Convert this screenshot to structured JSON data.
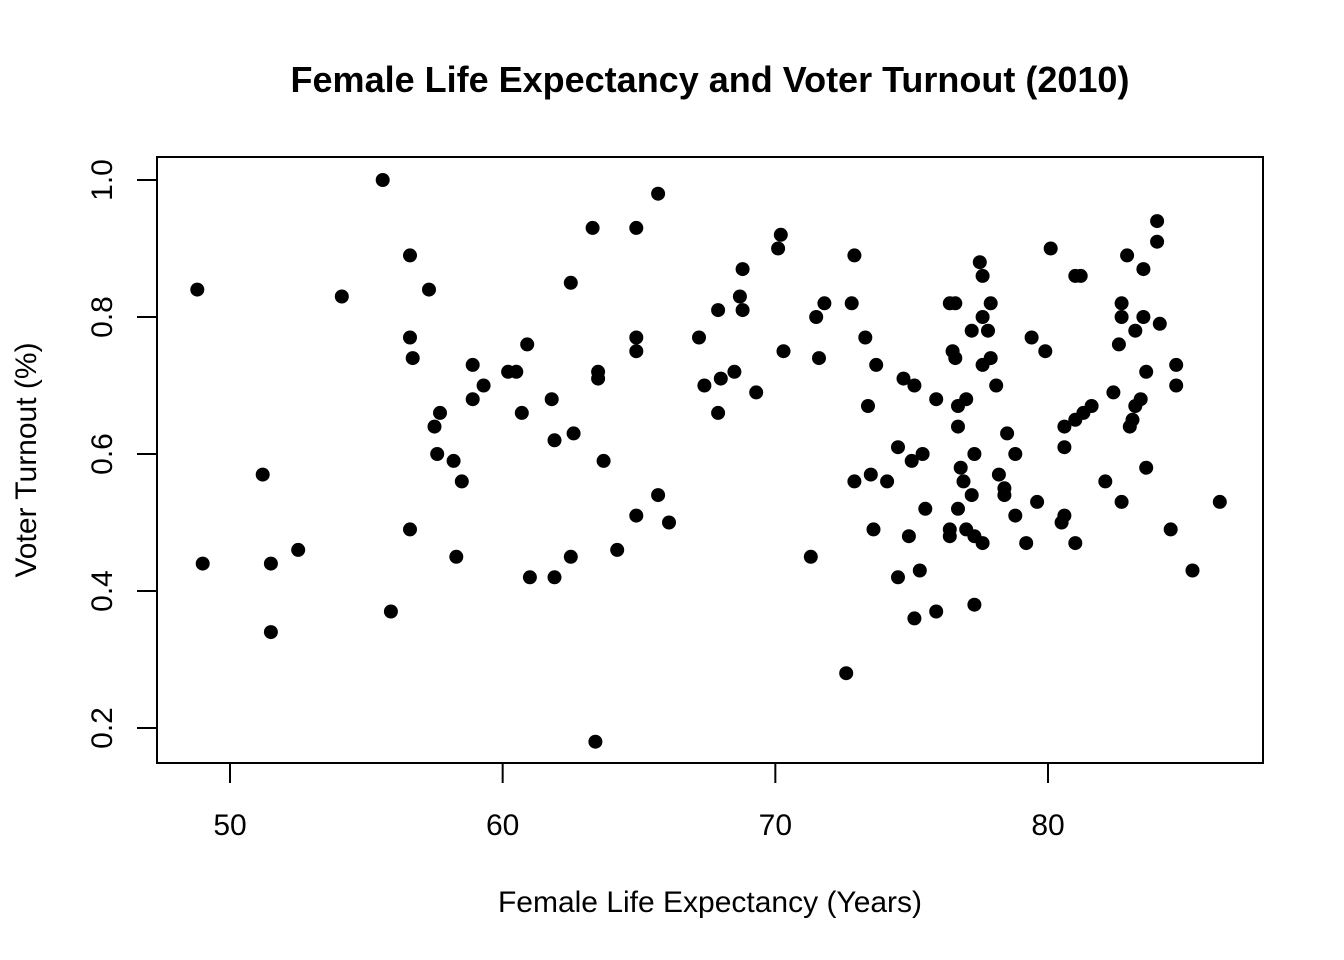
{
  "chart_data": {
    "type": "scatter",
    "title": "Female Life Expectancy and Voter Turnout (2010)",
    "xlabel": "Female Life Expectancy (Years)",
    "ylabel": "Voter Turnout (%)",
    "xlim": [
      47.4,
      86.4
    ],
    "ylim": [
      0.15,
      1.0
    ],
    "xticks": [
      50,
      60,
      70,
      80
    ],
    "xtick_labels": [
      "50",
      "60",
      "70",
      "80"
    ],
    "yticks": [
      0.2,
      0.4,
      0.6,
      0.8,
      1.0
    ],
    "ytick_labels": [
      "0.2",
      "0.4",
      "0.6",
      "0.8",
      "1.0"
    ],
    "grid": false,
    "marker_color": "#000000",
    "points": [
      [
        48.8,
        0.84
      ],
      [
        49.0,
        0.44
      ],
      [
        51.2,
        0.57
      ],
      [
        51.5,
        0.44
      ],
      [
        51.5,
        0.34
      ],
      [
        52.5,
        0.46
      ],
      [
        54.1,
        0.83
      ],
      [
        55.6,
        1.0
      ],
      [
        55.9,
        0.37
      ],
      [
        56.6,
        0.89
      ],
      [
        56.6,
        0.77
      ],
      [
        56.7,
        0.74
      ],
      [
        56.6,
        0.49
      ],
      [
        57.3,
        0.84
      ],
      [
        57.5,
        0.64
      ],
      [
        57.7,
        0.66
      ],
      [
        57.6,
        0.6
      ],
      [
        58.2,
        0.59
      ],
      [
        58.3,
        0.45
      ],
      [
        58.5,
        0.56
      ],
      [
        58.9,
        0.73
      ],
      [
        58.9,
        0.68
      ],
      [
        59.3,
        0.7
      ],
      [
        60.2,
        0.72
      ],
      [
        60.5,
        0.72
      ],
      [
        60.7,
        0.66
      ],
      [
        60.9,
        0.76
      ],
      [
        61.0,
        0.42
      ],
      [
        61.8,
        0.68
      ],
      [
        61.9,
        0.62
      ],
      [
        61.9,
        0.42
      ],
      [
        62.5,
        0.85
      ],
      [
        62.6,
        0.63
      ],
      [
        62.5,
        0.45
      ],
      [
        63.3,
        0.93
      ],
      [
        63.4,
        0.18
      ],
      [
        63.5,
        0.72
      ],
      [
        63.5,
        0.71
      ],
      [
        63.7,
        0.59
      ],
      [
        64.2,
        0.46
      ],
      [
        64.9,
        0.93
      ],
      [
        64.9,
        0.77
      ],
      [
        64.9,
        0.75
      ],
      [
        64.9,
        0.51
      ],
      [
        65.7,
        0.98
      ],
      [
        65.7,
        0.54
      ],
      [
        66.1,
        0.5
      ],
      [
        67.2,
        0.77
      ],
      [
        67.4,
        0.7
      ],
      [
        67.9,
        0.81
      ],
      [
        68.0,
        0.71
      ],
      [
        67.9,
        0.66
      ],
      [
        68.5,
        0.72
      ],
      [
        68.7,
        0.83
      ],
      [
        68.8,
        0.87
      ],
      [
        68.8,
        0.81
      ],
      [
        69.3,
        0.69
      ],
      [
        70.1,
        0.9
      ],
      [
        70.2,
        0.92
      ],
      [
        70.3,
        0.75
      ],
      [
        71.3,
        0.45
      ],
      [
        71.5,
        0.8
      ],
      [
        71.6,
        0.74
      ],
      [
        71.8,
        0.82
      ],
      [
        72.6,
        0.28
      ],
      [
        72.8,
        0.82
      ],
      [
        72.9,
        0.89
      ],
      [
        72.9,
        0.56
      ],
      [
        73.3,
        0.77
      ],
      [
        73.4,
        0.67
      ],
      [
        73.5,
        0.57
      ],
      [
        73.6,
        0.49
      ],
      [
        73.7,
        0.73
      ],
      [
        74.1,
        0.56
      ],
      [
        74.5,
        0.61
      ],
      [
        74.5,
        0.42
      ],
      [
        74.7,
        0.71
      ],
      [
        75.0,
        0.59
      ],
      [
        74.9,
        0.48
      ],
      [
        75.1,
        0.7
      ],
      [
        75.1,
        0.36
      ],
      [
        75.3,
        0.43
      ],
      [
        75.4,
        0.6
      ],
      [
        75.5,
        0.52
      ],
      [
        75.9,
        0.68
      ],
      [
        75.9,
        0.37
      ],
      [
        76.4,
        0.82
      ],
      [
        76.5,
        0.75
      ],
      [
        76.4,
        0.49
      ],
      [
        76.4,
        0.48
      ],
      [
        76.6,
        0.82
      ],
      [
        76.6,
        0.74
      ],
      [
        76.7,
        0.67
      ],
      [
        76.7,
        0.64
      ],
      [
        76.8,
        0.58
      ],
      [
        76.7,
        0.52
      ],
      [
        77.0,
        0.68
      ],
      [
        76.9,
        0.56
      ],
      [
        77.0,
        0.49
      ],
      [
        77.2,
        0.78
      ],
      [
        77.2,
        0.54
      ],
      [
        77.3,
        0.6
      ],
      [
        77.3,
        0.48
      ],
      [
        77.3,
        0.38
      ],
      [
        77.5,
        0.88
      ],
      [
        77.6,
        0.86
      ],
      [
        77.6,
        0.8
      ],
      [
        77.6,
        0.73
      ],
      [
        77.6,
        0.47
      ],
      [
        77.9,
        0.82
      ],
      [
        77.8,
        0.78
      ],
      [
        77.9,
        0.74
      ],
      [
        78.1,
        0.7
      ],
      [
        78.2,
        0.57
      ],
      [
        78.4,
        0.55
      ],
      [
        78.4,
        0.54
      ],
      [
        78.5,
        0.63
      ],
      [
        78.8,
        0.6
      ],
      [
        78.8,
        0.51
      ],
      [
        79.2,
        0.47
      ],
      [
        79.4,
        0.77
      ],
      [
        79.6,
        0.53
      ],
      [
        79.9,
        0.75
      ],
      [
        80.1,
        0.9
      ],
      [
        80.5,
        0.5
      ],
      [
        80.6,
        0.64
      ],
      [
        80.6,
        0.61
      ],
      [
        80.6,
        0.51
      ],
      [
        81.0,
        0.86
      ],
      [
        81.0,
        0.65
      ],
      [
        81.0,
        0.47
      ],
      [
        81.2,
        0.86
      ],
      [
        81.3,
        0.66
      ],
      [
        81.6,
        0.67
      ],
      [
        82.1,
        0.56
      ],
      [
        82.4,
        0.69
      ],
      [
        82.6,
        0.76
      ],
      [
        82.7,
        0.82
      ],
      [
        82.7,
        0.8
      ],
      [
        82.7,
        0.53
      ],
      [
        82.9,
        0.89
      ],
      [
        83.0,
        0.64
      ],
      [
        83.1,
        0.65
      ],
      [
        83.2,
        0.78
      ],
      [
        83.2,
        0.67
      ],
      [
        83.4,
        0.68
      ],
      [
        83.5,
        0.87
      ],
      [
        83.5,
        0.8
      ],
      [
        83.6,
        0.72
      ],
      [
        83.6,
        0.58
      ],
      [
        84.0,
        0.94
      ],
      [
        84.0,
        0.91
      ],
      [
        84.1,
        0.79
      ],
      [
        84.5,
        0.49
      ],
      [
        84.7,
        0.73
      ],
      [
        84.7,
        0.7
      ],
      [
        85.3,
        0.43
      ],
      [
        86.3,
        0.53
      ]
    ]
  }
}
